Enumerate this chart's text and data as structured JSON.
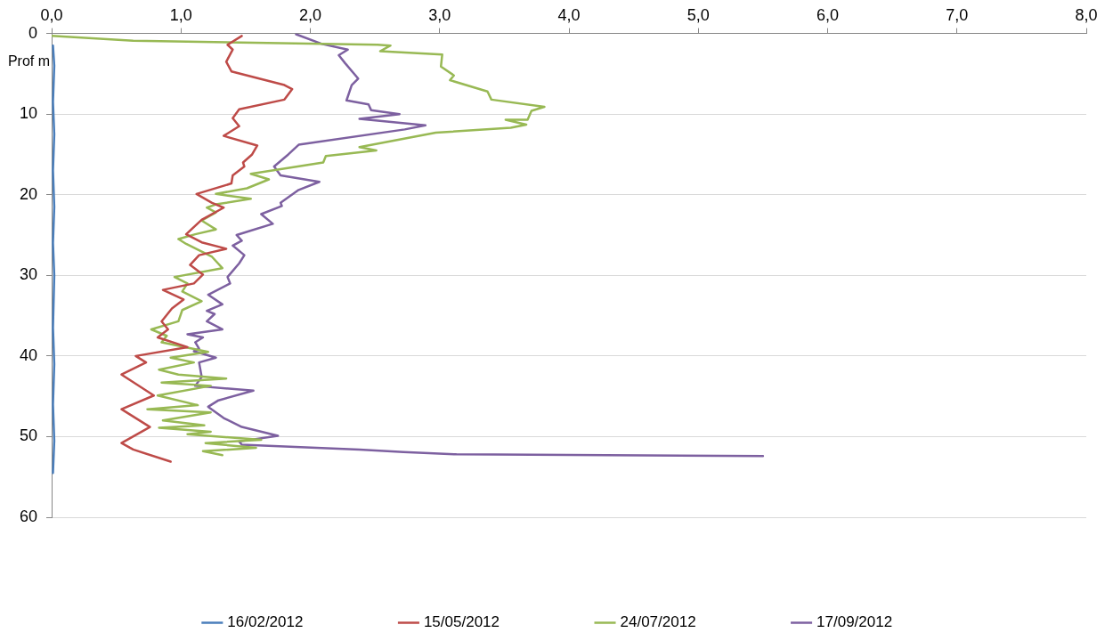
{
  "chart_data": {
    "type": "line",
    "ylabel": "Prof m",
    "xlim": [
      0,
      8
    ],
    "xticks": [
      {
        "value": 0,
        "label": "0,0"
      },
      {
        "value": 1,
        "label": "1,0"
      },
      {
        "value": 2,
        "label": "2,0"
      },
      {
        "value": 3,
        "label": "3,0"
      },
      {
        "value": 4,
        "label": "4,0"
      },
      {
        "value": 5,
        "label": "5,0"
      },
      {
        "value": 6,
        "label": "6,0"
      },
      {
        "value": 7,
        "label": "7,0"
      },
      {
        "value": 8,
        "label": "8,0"
      }
    ],
    "ylim": [
      60,
      0
    ],
    "yticks": [
      0,
      10,
      20,
      30,
      40,
      50,
      60
    ],
    "grid": "y",
    "legend": "bottom",
    "marker": "none",
    "line_style": "solid",
    "series": [
      {
        "name": "16/02/2012",
        "color": "#4a7ebb",
        "x": [
          0.01,
          0.02,
          0.01,
          0.02,
          0.01,
          0.02,
          0.01,
          0.02,
          0.01,
          0.02,
          0.01,
          0.02,
          0.01
        ],
        "values": [
          1.5,
          4,
          8.5,
          12.5,
          17,
          21.5,
          26,
          30,
          36.5,
          41,
          46,
          50.5,
          54.5
        ]
      },
      {
        "name": "15/05/2012",
        "color": "#be4b48",
        "x": [
          1.47,
          1.36,
          1.4,
          1.35,
          1.39,
          1.8,
          1.86,
          1.8,
          1.45,
          1.4,
          1.45,
          1.33,
          1.59,
          1.55,
          1.48,
          1.49,
          1.4,
          1.39,
          1.12,
          1.24,
          1.33,
          1.16,
          1.04,
          1.16,
          1.35,
          1.14,
          1.07,
          1.17,
          1.1,
          0.86,
          1.02,
          0.93,
          0.89,
          0.85,
          0.9,
          0.82,
          1.05,
          0.65,
          0.73,
          0.54,
          0.79,
          0.54,
          0.76,
          0.54,
          0.63,
          0.92
        ],
        "values": [
          0.3,
          1.4,
          2.0,
          3.5,
          4.7,
          6.4,
          6.9,
          8.2,
          9.4,
          10.5,
          11.5,
          12.7,
          13.9,
          15.0,
          16.0,
          16.5,
          17.6,
          18.6,
          19.9,
          21.0,
          21.6,
          23.1,
          24.9,
          25.9,
          26.7,
          27.5,
          28.7,
          29.9,
          31.0,
          31.8,
          33.0,
          34.1,
          34.9,
          35.7,
          36.7,
          37.7,
          38.9,
          40.0,
          40.8,
          42.3,
          44.9,
          46.6,
          48.8,
          50.8,
          51.6,
          53.1
        ]
      },
      {
        "name": "24/07/2012",
        "color": "#98b954",
        "x": [
          0.0,
          0.63,
          2.52,
          2.62,
          2.54,
          3.02,
          3.01,
          3.11,
          3.08,
          3.37,
          3.4,
          3.81,
          3.71,
          3.68,
          3.51,
          3.67,
          3.55,
          2.97,
          2.38,
          2.51,
          2.12,
          2.1,
          1.54,
          1.68,
          1.51,
          1.27,
          1.54,
          1.27,
          1.2,
          1.27,
          1.16,
          1.27,
          1.11,
          0.98,
          1.04,
          1.24,
          1.32,
          0.95,
          1.05,
          1.01,
          1.16,
          1.01,
          0.98,
          0.77,
          0.89,
          0.85,
          1.21,
          0.92,
          1.1,
          0.83,
          0.98,
          1.35,
          0.85,
          1.23,
          0.82,
          1.13,
          0.74,
          1.23,
          0.86,
          1.18,
          0.83,
          1.23,
          1.05,
          1.62,
          1.19,
          1.58,
          1.17,
          1.32
        ],
        "values": [
          0.3,
          0.9,
          1.4,
          1.5,
          2.2,
          2.6,
          4.1,
          5.2,
          5.8,
          7.2,
          8.2,
          9.1,
          9.6,
          10.7,
          10.7,
          11.3,
          11.7,
          12.3,
          14.1,
          14.5,
          15.2,
          16.0,
          17.4,
          18.1,
          19.2,
          19.9,
          20.5,
          21.2,
          21.6,
          22.2,
          23.2,
          24.3,
          24.9,
          25.5,
          26.1,
          27.7,
          29.1,
          30.2,
          31.0,
          32.0,
          33.2,
          34.3,
          35.7,
          36.7,
          37.5,
          38.3,
          39.5,
          40.2,
          40.8,
          41.7,
          42.3,
          42.8,
          43.3,
          43.7,
          44.9,
          46.1,
          46.6,
          47.0,
          48.0,
          48.6,
          48.9,
          49.4,
          49.7,
          50.4,
          50.8,
          51.4,
          51.8,
          52.3
        ]
      },
      {
        "name": "17/09/2012",
        "color": "#7d60a0",
        "x": [
          1.89,
          2.09,
          2.29,
          2.22,
          2.27,
          2.37,
          2.32,
          2.28,
          2.45,
          2.47,
          2.69,
          2.38,
          2.89,
          2.73,
          1.91,
          1.83,
          1.72,
          1.77,
          2.07,
          1.91,
          1.77,
          1.78,
          1.62,
          1.71,
          1.43,
          1.47,
          1.4,
          1.49,
          1.45,
          1.36,
          1.38,
          1.21,
          1.32,
          1.2,
          1.26,
          1.2,
          1.32,
          1.05,
          1.17,
          1.11,
          1.14,
          1.1,
          1.27,
          1.14,
          1.16,
          1.11,
          1.56,
          1.29,
          1.21,
          1.33,
          1.47,
          1.75,
          1.45,
          1.47,
          2.38,
          2.72,
          3.13,
          5.5
        ],
        "values": [
          0.1,
          1.3,
          2.0,
          2.7,
          3.7,
          5.6,
          6.4,
          8.3,
          8.8,
          9.5,
          10.0,
          10.6,
          11.4,
          11.9,
          13.8,
          15.0,
          16.5,
          17.6,
          18.4,
          19.4,
          21.0,
          21.4,
          22.4,
          23.6,
          25.0,
          25.7,
          26.3,
          27.5,
          28.5,
          30.2,
          31.0,
          32.4,
          33.6,
          34.4,
          34.8,
          35.7,
          36.7,
          37.3,
          37.7,
          38.3,
          39.1,
          39.4,
          40.2,
          40.8,
          42.6,
          43.7,
          44.3,
          45.5,
          46.3,
          47.7,
          48.8,
          49.9,
          50.6,
          51.0,
          51.6,
          51.9,
          52.2,
          52.4
        ]
      }
    ]
  }
}
